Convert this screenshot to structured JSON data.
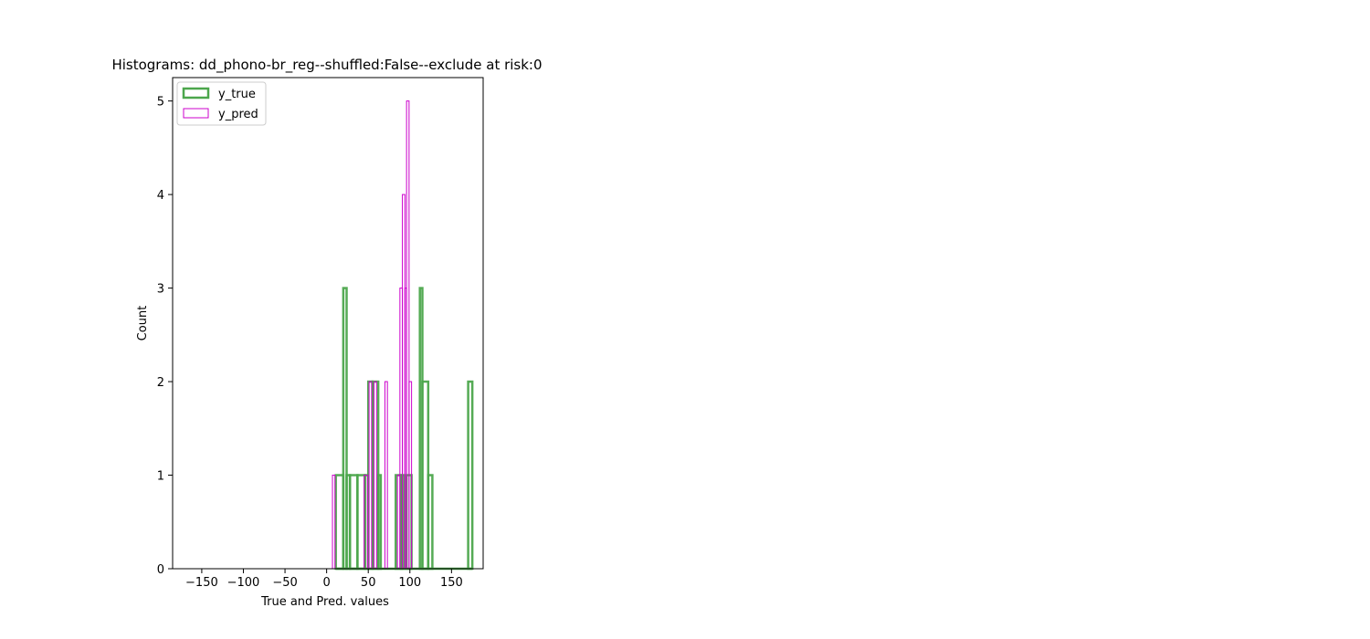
{
  "chart_data": {
    "type": "histogram",
    "title": "Histograms: dd_phono-br_reg--shuffled:False--exclude at risk:0",
    "xlabel": "True and Pred. values",
    "ylabel": "Count",
    "xlim": [
      -185,
      188
    ],
    "ylim": [
      0,
      5.25
    ],
    "xticks": [
      -150,
      -100,
      -50,
      0,
      50,
      100,
      150
    ],
    "xtick_labels": [
      "−150",
      "−100",
      "−50",
      "0",
      "50",
      "100",
      "150"
    ],
    "yticks": [
      0,
      1,
      2,
      3,
      4,
      5
    ],
    "ytick_labels": [
      "0",
      "1",
      "2",
      "3",
      "4",
      "5"
    ],
    "grid": false,
    "legend_position": "upper-left",
    "series": [
      {
        "name": "y_true",
        "color": "#4ca64c",
        "style": "step-outline-thick",
        "bins": [
          [
            11,
            20,
            1
          ],
          [
            20,
            24,
            3
          ],
          [
            24,
            28,
            1
          ],
          [
            28,
            37,
            1
          ],
          [
            37,
            46,
            1
          ],
          [
            46,
            50,
            1
          ],
          [
            50,
            55,
            2
          ],
          [
            55,
            62,
            2
          ],
          [
            62,
            65,
            1
          ],
          [
            65,
            83,
            0
          ],
          [
            83,
            90,
            1
          ],
          [
            90,
            93,
            1
          ],
          [
            93,
            96,
            0
          ],
          [
            96,
            102,
            1
          ],
          [
            102,
            112,
            0
          ],
          [
            112,
            115,
            3
          ],
          [
            115,
            122,
            2
          ],
          [
            122,
            127,
            1
          ],
          [
            127,
            170,
            0
          ],
          [
            170,
            175,
            2
          ]
        ]
      },
      {
        "name": "y_pred",
        "color": "#cc00cc",
        "style": "step-outline",
        "bins": [
          [
            7,
            10,
            1
          ],
          [
            10,
            13,
            0
          ],
          [
            13,
            45,
            0
          ],
          [
            45,
            49,
            1
          ],
          [
            49,
            51,
            0
          ],
          [
            51,
            54,
            2
          ],
          [
            54,
            57,
            0
          ],
          [
            57,
            60,
            2
          ],
          [
            60,
            63,
            0
          ],
          [
            63,
            70,
            0
          ],
          [
            70,
            73,
            2
          ],
          [
            73,
            76,
            0
          ],
          [
            76,
            85,
            0
          ],
          [
            85,
            88,
            1
          ],
          [
            88,
            91,
            3
          ],
          [
            91,
            94,
            4
          ],
          [
            94,
            96,
            3
          ],
          [
            96,
            99,
            5
          ],
          [
            99,
            102,
            2
          ],
          [
            102,
            104,
            0
          ]
        ]
      }
    ]
  }
}
